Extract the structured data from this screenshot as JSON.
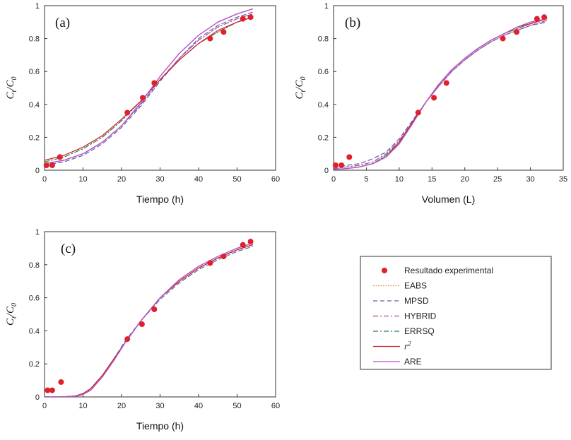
{
  "chart_data": [
    {
      "type": "line",
      "panel": "(a)",
      "xlabel": "Tiempo (h)",
      "ylabel": "Ct/C0",
      "xlim": [
        0,
        60
      ],
      "ylim": [
        0,
        1
      ],
      "xticks": [
        0,
        10,
        20,
        30,
        40,
        50,
        60
      ],
      "yticks": [
        0,
        0.2,
        0.4,
        0.6,
        0.8,
        1
      ],
      "experimental": {
        "x": [
          0.5,
          2,
          4,
          21.5,
          25.5,
          28.5,
          43,
          46.5,
          51.5,
          53.5
        ],
        "y": [
          0.03,
          0.03,
          0.08,
          0.35,
          0.44,
          0.53,
          0.8,
          0.84,
          0.92,
          0.93
        ]
      },
      "series": [
        {
          "name": "EABS",
          "x": [
            0,
            5,
            10,
            15,
            20,
            25,
            30,
            35,
            40,
            45,
            50,
            54
          ],
          "y": [
            0.06,
            0.09,
            0.14,
            0.21,
            0.31,
            0.42,
            0.55,
            0.67,
            0.77,
            0.84,
            0.9,
            0.93
          ]
        },
        {
          "name": "MPSD",
          "x": [
            0,
            5,
            10,
            15,
            20,
            25,
            30,
            35,
            40,
            45,
            50,
            54
          ],
          "y": [
            0.03,
            0.05,
            0.09,
            0.16,
            0.26,
            0.39,
            0.54,
            0.68,
            0.8,
            0.88,
            0.93,
            0.96
          ]
        },
        {
          "name": "HYBRID",
          "x": [
            0,
            5,
            10,
            15,
            20,
            25,
            30,
            35,
            40,
            45,
            50,
            54
          ],
          "y": [
            0.04,
            0.06,
            0.1,
            0.17,
            0.27,
            0.4,
            0.55,
            0.68,
            0.79,
            0.87,
            0.92,
            0.95
          ]
        },
        {
          "name": "ERRSQ",
          "x": [
            0,
            5,
            10,
            15,
            20,
            25,
            30,
            35,
            40,
            45,
            50,
            54
          ],
          "y": [
            0.05,
            0.08,
            0.13,
            0.2,
            0.3,
            0.42,
            0.55,
            0.67,
            0.77,
            0.84,
            0.9,
            0.93
          ]
        },
        {
          "name": "r2",
          "x": [
            0,
            5,
            10,
            15,
            20,
            25,
            30,
            35,
            40,
            45,
            50,
            54
          ],
          "y": [
            0.06,
            0.09,
            0.14,
            0.21,
            0.31,
            0.42,
            0.55,
            0.67,
            0.77,
            0.85,
            0.9,
            0.93
          ]
        },
        {
          "name": "ARE",
          "x": [
            0,
            5,
            10,
            15,
            20,
            25,
            30,
            35,
            40,
            45,
            50,
            54
          ],
          "y": [
            0.04,
            0.06,
            0.1,
            0.17,
            0.27,
            0.41,
            0.57,
            0.71,
            0.82,
            0.9,
            0.95,
            0.98
          ]
        }
      ]
    },
    {
      "type": "line",
      "panel": "(b)",
      "xlabel": "Volumen (L)",
      "ylabel": "Ct/C0",
      "xlim": [
        0,
        35
      ],
      "ylim": [
        0,
        1
      ],
      "xticks": [
        0,
        5,
        10,
        15,
        20,
        25,
        30,
        35
      ],
      "yticks": [
        0,
        0.2,
        0.4,
        0.6,
        0.8,
        1
      ],
      "experimental": {
        "x": [
          0.3,
          1.2,
          2.4,
          12.9,
          15.3,
          17.2,
          25.8,
          27.9,
          31.0,
          32.1
        ],
        "y": [
          0.03,
          0.03,
          0.08,
          0.35,
          0.44,
          0.53,
          0.8,
          0.84,
          0.92,
          0.93
        ]
      },
      "series": [
        {
          "name": "EABS",
          "x": [
            0,
            2,
            4,
            6,
            8,
            10,
            12,
            14,
            16,
            18,
            20,
            22,
            24,
            26,
            28,
            30,
            32.5
          ],
          "y": [
            0.005,
            0.01,
            0.02,
            0.04,
            0.09,
            0.17,
            0.29,
            0.41,
            0.52,
            0.61,
            0.68,
            0.74,
            0.79,
            0.83,
            0.86,
            0.89,
            0.92
          ]
        },
        {
          "name": "MPSD",
          "x": [
            0,
            2,
            4,
            6,
            8,
            10,
            12,
            14,
            16,
            18,
            20,
            22,
            24,
            26,
            28,
            30,
            32.5
          ],
          "y": [
            0.02,
            0.03,
            0.04,
            0.07,
            0.11,
            0.19,
            0.3,
            0.41,
            0.51,
            0.6,
            0.67,
            0.73,
            0.78,
            0.82,
            0.85,
            0.88,
            0.9
          ]
        },
        {
          "name": "HYBRID",
          "x": [
            0,
            2,
            4,
            6,
            8,
            10,
            12,
            14,
            16,
            18,
            20,
            22,
            24,
            26,
            28,
            30,
            32.5
          ],
          "y": [
            0.01,
            0.02,
            0.03,
            0.05,
            0.1,
            0.18,
            0.29,
            0.41,
            0.51,
            0.6,
            0.67,
            0.73,
            0.78,
            0.82,
            0.85,
            0.88,
            0.91
          ]
        },
        {
          "name": "ERRSQ",
          "x": [
            0,
            2,
            4,
            6,
            8,
            10,
            12,
            14,
            16,
            18,
            20,
            22,
            24,
            26,
            28,
            30,
            32.5
          ],
          "y": [
            0.005,
            0.01,
            0.02,
            0.04,
            0.09,
            0.17,
            0.29,
            0.41,
            0.52,
            0.61,
            0.68,
            0.74,
            0.79,
            0.83,
            0.86,
            0.89,
            0.92
          ]
        },
        {
          "name": "r2",
          "x": [
            0,
            2,
            4,
            6,
            8,
            10,
            12,
            14,
            16,
            18,
            20,
            22,
            24,
            26,
            28,
            30,
            32.5
          ],
          "y": [
            0.005,
            0.01,
            0.02,
            0.04,
            0.08,
            0.17,
            0.29,
            0.41,
            0.52,
            0.61,
            0.68,
            0.74,
            0.79,
            0.83,
            0.87,
            0.89,
            0.92
          ]
        },
        {
          "name": "ARE",
          "x": [
            0,
            2,
            4,
            6,
            8,
            10,
            12,
            14,
            16,
            18,
            20,
            22,
            24,
            26,
            28,
            30,
            32.5
          ],
          "y": [
            0.005,
            0.01,
            0.02,
            0.04,
            0.08,
            0.16,
            0.28,
            0.41,
            0.52,
            0.61,
            0.68,
            0.74,
            0.79,
            0.83,
            0.87,
            0.9,
            0.92
          ]
        }
      ]
    },
    {
      "type": "line",
      "panel": "(c)",
      "xlabel": "Tiempo (h)",
      "ylabel": "Ct/C0",
      "xlim": [
        0,
        60
      ],
      "ylim": [
        0,
        1
      ],
      "xticks": [
        0,
        10,
        20,
        30,
        40,
        50,
        60
      ],
      "yticks": [
        0,
        0.2,
        0.4,
        0.6,
        0.8,
        1
      ],
      "experimental": {
        "x": [
          0.8,
          2,
          4.3,
          21.5,
          25.3,
          28.5,
          43,
          46.5,
          51.5,
          53.5
        ],
        "y": [
          0.04,
          0.04,
          0.09,
          0.35,
          0.44,
          0.53,
          0.81,
          0.85,
          0.92,
          0.94
        ]
      },
      "series": [
        {
          "name": "EABS",
          "x": [
            0,
            4,
            8,
            10,
            12,
            15,
            18,
            21,
            25,
            30,
            35,
            40,
            45,
            50,
            54
          ],
          "y": [
            0,
            0,
            0.005,
            0.02,
            0.05,
            0.13,
            0.23,
            0.33,
            0.46,
            0.6,
            0.7,
            0.78,
            0.84,
            0.89,
            0.92
          ]
        },
        {
          "name": "MPSD",
          "x": [
            0,
            4,
            8,
            10,
            12,
            15,
            18,
            21,
            25,
            30,
            35,
            40,
            45,
            50,
            54
          ],
          "y": [
            0,
            0,
            0.005,
            0.02,
            0.05,
            0.13,
            0.23,
            0.34,
            0.46,
            0.59,
            0.69,
            0.77,
            0.83,
            0.88,
            0.91
          ]
        },
        {
          "name": "HYBRID",
          "x": [
            0,
            4,
            8,
            10,
            12,
            15,
            18,
            21,
            25,
            30,
            35,
            40,
            45,
            50,
            54
          ],
          "y": [
            0,
            0,
            0.005,
            0.02,
            0.05,
            0.13,
            0.23,
            0.33,
            0.46,
            0.6,
            0.7,
            0.78,
            0.84,
            0.89,
            0.92
          ]
        },
        {
          "name": "ERRSQ",
          "x": [
            0,
            4,
            8,
            10,
            12,
            15,
            18,
            21,
            25,
            30,
            35,
            40,
            45,
            50,
            54
          ],
          "y": [
            0,
            0,
            0.005,
            0.02,
            0.05,
            0.13,
            0.23,
            0.33,
            0.46,
            0.6,
            0.7,
            0.78,
            0.84,
            0.89,
            0.92
          ]
        },
        {
          "name": "r2",
          "x": [
            0,
            4,
            8,
            10,
            12,
            15,
            18,
            21,
            25,
            30,
            35,
            40,
            45,
            50,
            54
          ],
          "y": [
            0,
            0,
            0.005,
            0.02,
            0.05,
            0.13,
            0.23,
            0.33,
            0.46,
            0.6,
            0.7,
            0.78,
            0.84,
            0.89,
            0.92
          ]
        },
        {
          "name": "ARE",
          "x": [
            0,
            4,
            8,
            10,
            12,
            15,
            18,
            21,
            25,
            30,
            35,
            40,
            45,
            50,
            54
          ],
          "y": [
            0,
            0,
            0.003,
            0.015,
            0.04,
            0.12,
            0.22,
            0.33,
            0.46,
            0.6,
            0.71,
            0.79,
            0.85,
            0.9,
            0.93
          ]
        }
      ]
    }
  ],
  "legend": {
    "placement": "right",
    "entries": [
      {
        "key": "experimental",
        "label": "Resultado experimental"
      },
      {
        "key": "EABS",
        "label": "EABS"
      },
      {
        "key": "MPSD",
        "label": "MPSD"
      },
      {
        "key": "HYBRID",
        "label": "HYBRID"
      },
      {
        "key": "ERRSQ",
        "label": "ERRSQ"
      },
      {
        "key": "r2",
        "label": "r",
        "sup": "2"
      },
      {
        "key": "ARE",
        "label": "ARE"
      }
    ]
  },
  "ylabel_parts": {
    "c": "C",
    "t": "t",
    "slash": "/",
    "zero": "0"
  },
  "styles": {
    "experimental": {
      "color": "#e0202a"
    },
    "EABS": {
      "color": "#d98a2b",
      "dash": "dot"
    },
    "MPSD": {
      "color": "#5a5fa6",
      "dash": "dash"
    },
    "HYBRID": {
      "color": "#a04a9c",
      "dash": "dashdot"
    },
    "ERRSQ": {
      "color": "#2e7d4a",
      "dash": "dashdot"
    },
    "r2": {
      "color": "#c8202f",
      "dash": "solid"
    },
    "ARE": {
      "color": "#b84fc8",
      "dash": "solid"
    }
  }
}
